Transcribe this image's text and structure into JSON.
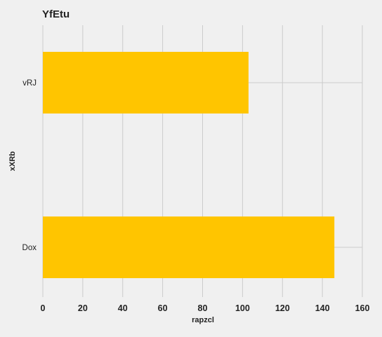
{
  "chart_data": {
    "type": "bar",
    "orientation": "horizontal",
    "title": "YfEtu",
    "xlabel": "rapzcl",
    "ylabel": "xXRb",
    "categories": [
      "vRJ",
      "Dox"
    ],
    "values": [
      103,
      146
    ],
    "xlim": [
      0,
      160
    ],
    "xticks": [
      0,
      20,
      40,
      60,
      80,
      100,
      120,
      140,
      160
    ],
    "grid": true,
    "bar_color": "#ffc500",
    "grid_color": "#cbcbcb",
    "background": "#f0f0f0"
  }
}
